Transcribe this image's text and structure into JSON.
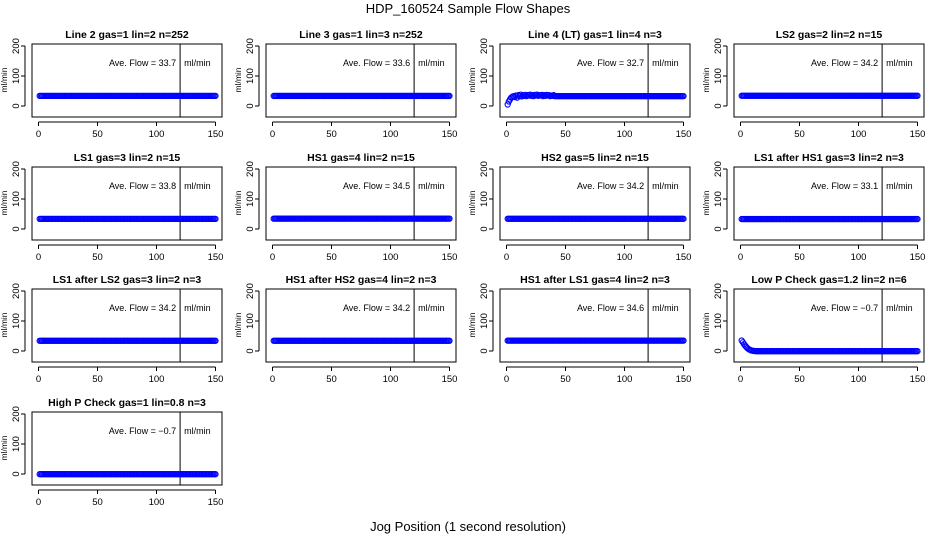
{
  "figure": {
    "title": "HDP_160524  Sample Flow Shapes",
    "xlabel": "Jog Position (1 second resolution)"
  },
  "chart_data": [
    {
      "type": "scatter",
      "title": "Line 2 gas=1 lin=2 n=252",
      "ylabel": "ml/min",
      "xlim": [
        0,
        150
      ],
      "ylim": [
        0,
        200
      ],
      "xticks": [
        0,
        50,
        100,
        150
      ],
      "yticks": [
        0,
        100,
        200
      ],
      "vline_x": 120,
      "annotation": "Ave. Flow =  33.7",
      "annotation_unit": "ml/min",
      "point_color": "#0000ff",
      "points": {
        "x_start": 1,
        "x_end": 150,
        "steady_value": 33.7,
        "initial_values": []
      }
    },
    {
      "type": "scatter",
      "title": "Line 3 gas=1 lin=3 n=252",
      "ylabel": "ml/min",
      "xlim": [
        0,
        150
      ],
      "ylim": [
        0,
        200
      ],
      "xticks": [
        0,
        50,
        100,
        150
      ],
      "yticks": [
        0,
        100,
        200
      ],
      "vline_x": 120,
      "annotation": "Ave. Flow =  33.6",
      "annotation_unit": "ml/min",
      "point_color": "#0000ff",
      "points": {
        "x_start": 1,
        "x_end": 150,
        "steady_value": 33.6,
        "initial_values": []
      }
    },
    {
      "type": "scatter",
      "title": "Line 4 (LT) gas=1 lin=4 n=3",
      "ylabel": "ml/min",
      "xlim": [
        0,
        150
      ],
      "ylim": [
        0,
        200
      ],
      "xticks": [
        0,
        50,
        100,
        150
      ],
      "yticks": [
        0,
        100,
        200
      ],
      "vline_x": 120,
      "annotation": "Ave. Flow =  32.7",
      "annotation_unit": "ml/min",
      "point_color": "#0000ff",
      "points": {
        "x_start": 1,
        "x_end": 150,
        "steady_value": 33,
        "initial_values": [
          5,
          15,
          22,
          28,
          31,
          33,
          30,
          35,
          28,
          36,
          33,
          38,
          32,
          36,
          34,
          37,
          33,
          36,
          35,
          38,
          34,
          36,
          33,
          37,
          35,
          38,
          34,
          36,
          35,
          37,
          33,
          36,
          34,
          37,
          35,
          36,
          33,
          35,
          34,
          36
        ]
      }
    },
    {
      "type": "scatter",
      "title": "LS2 gas=2 lin=2 n=15",
      "ylabel": "ml/min",
      "xlim": [
        0,
        150
      ],
      "ylim": [
        0,
        200
      ],
      "xticks": [
        0,
        50,
        100,
        150
      ],
      "yticks": [
        0,
        100,
        200
      ],
      "vline_x": 120,
      "annotation": "Ave. Flow =  34.2",
      "annotation_unit": "ml/min",
      "point_color": "#0000ff",
      "points": {
        "x_start": 1,
        "x_end": 150,
        "steady_value": 34.2,
        "initial_values": []
      }
    },
    {
      "type": "scatter",
      "title": "LS1 gas=3 lin=2 n=15",
      "ylabel": "ml/min",
      "xlim": [
        0,
        150
      ],
      "ylim": [
        0,
        200
      ],
      "xticks": [
        0,
        50,
        100,
        150
      ],
      "yticks": [
        0,
        100,
        200
      ],
      "vline_x": 120,
      "annotation": "Ave. Flow =  33.8",
      "annotation_unit": "ml/min",
      "point_color": "#0000ff",
      "points": {
        "x_start": 1,
        "x_end": 150,
        "steady_value": 33.8,
        "initial_values": []
      }
    },
    {
      "type": "scatter",
      "title": "HS1 gas=4 lin=2 n=15",
      "ylabel": "ml/min",
      "xlim": [
        0,
        150
      ],
      "ylim": [
        0,
        200
      ],
      "xticks": [
        0,
        50,
        100,
        150
      ],
      "yticks": [
        0,
        100,
        200
      ],
      "vline_x": 120,
      "annotation": "Ave. Flow =  34.5",
      "annotation_unit": "ml/min",
      "point_color": "#0000ff",
      "points": {
        "x_start": 1,
        "x_end": 150,
        "steady_value": 34.5,
        "initial_values": []
      }
    },
    {
      "type": "scatter",
      "title": "HS2 gas=5 lin=2 n=15",
      "ylabel": "ml/min",
      "xlim": [
        0,
        150
      ],
      "ylim": [
        0,
        200
      ],
      "xticks": [
        0,
        50,
        100,
        150
      ],
      "yticks": [
        0,
        100,
        200
      ],
      "vline_x": 120,
      "annotation": "Ave. Flow =  34.2",
      "annotation_unit": "ml/min",
      "point_color": "#0000ff",
      "points": {
        "x_start": 1,
        "x_end": 150,
        "steady_value": 34.2,
        "initial_values": []
      }
    },
    {
      "type": "scatter",
      "title": "LS1 after HS1 gas=3 lin=2 n=3",
      "ylabel": "ml/min",
      "xlim": [
        0,
        150
      ],
      "ylim": [
        0,
        200
      ],
      "xticks": [
        0,
        50,
        100,
        150
      ],
      "yticks": [
        0,
        100,
        200
      ],
      "vline_x": 120,
      "annotation": "Ave. Flow =  33.1",
      "annotation_unit": "ml/min",
      "point_color": "#0000ff",
      "points": {
        "x_start": 1,
        "x_end": 150,
        "steady_value": 33.1,
        "initial_values": []
      }
    },
    {
      "type": "scatter",
      "title": "LS1 after LS2 gas=3 lin=2 n=3",
      "ylabel": "ml/min",
      "xlim": [
        0,
        150
      ],
      "ylim": [
        0,
        200
      ],
      "xticks": [
        0,
        50,
        100,
        150
      ],
      "yticks": [
        0,
        100,
        200
      ],
      "vline_x": 120,
      "annotation": "Ave. Flow =  34.2",
      "annotation_unit": "ml/min",
      "point_color": "#0000ff",
      "points": {
        "x_start": 1,
        "x_end": 150,
        "steady_value": 34.2,
        "initial_values": []
      }
    },
    {
      "type": "scatter",
      "title": "HS1 after HS2 gas=4 lin=2 n=3",
      "ylabel": "ml/min",
      "xlim": [
        0,
        150
      ],
      "ylim": [
        0,
        200
      ],
      "xticks": [
        0,
        50,
        100,
        150
      ],
      "yticks": [
        0,
        100,
        200
      ],
      "vline_x": 120,
      "annotation": "Ave. Flow =  34.2",
      "annotation_unit": "ml/min",
      "point_color": "#0000ff",
      "points": {
        "x_start": 1,
        "x_end": 150,
        "steady_value": 34.2,
        "initial_values": []
      }
    },
    {
      "type": "scatter",
      "title": "HS1 after LS1 gas=4 lin=2 n=3",
      "ylabel": "ml/min",
      "xlim": [
        0,
        150
      ],
      "ylim": [
        0,
        200
      ],
      "xticks": [
        0,
        50,
        100,
        150
      ],
      "yticks": [
        0,
        100,
        200
      ],
      "vline_x": 120,
      "annotation": "Ave. Flow =  34.6",
      "annotation_unit": "ml/min",
      "point_color": "#0000ff",
      "points": {
        "x_start": 1,
        "x_end": 150,
        "steady_value": 34.6,
        "initial_values": []
      }
    },
    {
      "type": "scatter",
      "title": "Low P Check gas=1.2 lin=2 n=6",
      "ylabel": "ml/min",
      "xlim": [
        0,
        150
      ],
      "ylim": [
        0,
        200
      ],
      "xticks": [
        0,
        50,
        100,
        150
      ],
      "yticks": [
        0,
        100,
        200
      ],
      "vline_x": 120,
      "annotation": "Ave. Flow =  −0.7",
      "annotation_unit": "ml/min",
      "point_color": "#0000ff",
      "points": {
        "x_start": 1,
        "x_end": 150,
        "steady_value": -0.7,
        "initial_values": [
          35,
          29,
          23,
          18,
          13,
          9,
          6,
          4,
          2,
          1,
          0.5,
          0
        ]
      }
    },
    {
      "type": "scatter",
      "title": "High P Check gas=1 lin=0.8 n=3",
      "ylabel": "ml/min",
      "xlim": [
        0,
        150
      ],
      "ylim": [
        0,
        200
      ],
      "xticks": [
        0,
        50,
        100,
        150
      ],
      "yticks": [
        0,
        100,
        200
      ],
      "vline_x": 120,
      "annotation": "Ave. Flow =  −0.7",
      "annotation_unit": "ml/min",
      "point_color": "#0000ff",
      "points": {
        "x_start": 1,
        "x_end": 150,
        "steady_value": -0.7,
        "initial_values": []
      }
    }
  ]
}
